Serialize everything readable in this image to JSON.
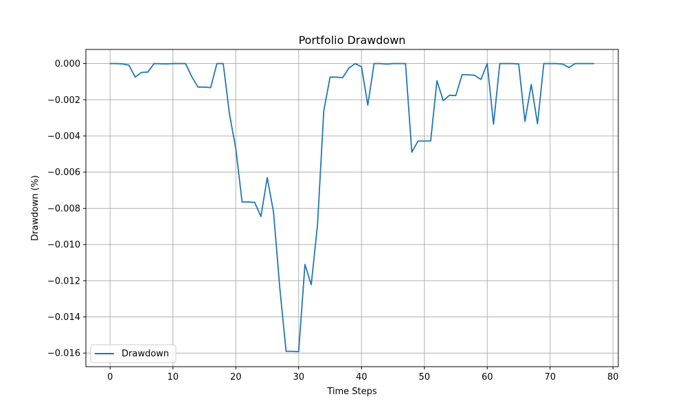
{
  "chart_data": {
    "type": "line",
    "title": "Portfolio Drawdown",
    "xlabel": "Time Steps",
    "ylabel": "Drawdown (%)",
    "xlim": [
      -3.85,
      80.85
    ],
    "ylim": [
      -0.01675,
      0.00078
    ],
    "xticks": [
      0,
      10,
      20,
      30,
      40,
      50,
      60,
      70,
      80
    ],
    "yticks": [
      0.0,
      -0.002,
      -0.004,
      -0.006,
      -0.008,
      -0.01,
      -0.012,
      -0.014,
      -0.016
    ],
    "ytick_labels": [
      "0.000",
      "−0.002",
      "−0.004",
      "−0.006",
      "−0.008",
      "−0.010",
      "−0.012",
      "−0.014",
      "−0.016"
    ],
    "grid": true,
    "legend_position": "lower-left",
    "series": [
      {
        "name": "Drawdown",
        "color": "#1f77b4",
        "x": [
          0,
          1,
          2,
          3,
          4,
          5,
          6,
          7,
          8,
          9,
          10,
          11,
          12,
          13,
          14,
          15,
          16,
          17,
          18,
          19,
          20,
          21,
          22,
          23,
          24,
          25,
          26,
          27,
          28,
          29,
          30,
          31,
          32,
          33,
          34,
          35,
          36,
          37,
          38,
          39,
          40,
          41,
          42,
          43,
          44,
          45,
          46,
          47,
          48,
          49,
          50,
          51,
          52,
          53,
          54,
          55,
          56,
          57,
          58,
          59,
          60,
          61,
          62,
          63,
          64,
          65,
          66,
          67,
          68,
          69,
          70,
          71,
          72,
          73,
          74,
          75,
          76,
          77
        ],
        "y": [
          0.0,
          0.0,
          -2e-05,
          -9e-05,
          -0.00075,
          -0.00049,
          -0.00047,
          0.0,
          -1e-05,
          -2e-05,
          0.0,
          0.0,
          0.0,
          -0.00073,
          -0.0013,
          -0.0013,
          -0.00133,
          0.0,
          0.0,
          -0.0028,
          -0.0047,
          -0.00765,
          -0.00765,
          -0.00767,
          -0.00845,
          -0.0063,
          -0.0082,
          -0.0124,
          -0.0159,
          -0.0159,
          -0.01592,
          -0.0111,
          -0.01222,
          -0.0089,
          -0.0026,
          -0.00075,
          -0.00075,
          -0.00078,
          -0.00025,
          0.0,
          -0.00018,
          -0.0023,
          0.0,
          0.0,
          -3e-05,
          0.0,
          0.0,
          0.0,
          -0.0049,
          -0.00428,
          -0.00428,
          -0.00428,
          -0.00095,
          -0.00205,
          -0.00175,
          -0.00177,
          -0.00062,
          -0.00062,
          -0.00065,
          -0.00088,
          0.0,
          -0.00335,
          0.0,
          0.0,
          0.0,
          -2e-05,
          -0.0032,
          -0.00115,
          -0.00333,
          0.0,
          0.0,
          0.0,
          -3e-05,
          -0.00022,
          0.0,
          0.0,
          0.0,
          0.0
        ]
      }
    ]
  }
}
